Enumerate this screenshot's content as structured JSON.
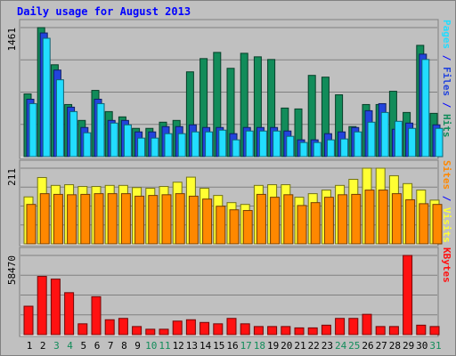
{
  "title": "Daily usage for August 2013",
  "colors": {
    "frame": "#c0c0c0",
    "title": "#0000ff",
    "hits": "#128c5a",
    "files": "#2244dd",
    "pages": "#22ddff",
    "visits": "#ffff33",
    "sites": "#ff8800",
    "kbytes": "#ff1111",
    "weekday_label": "#000000",
    "weekend_label": "#128c5a"
  },
  "chart_data": [
    {
      "type": "bar",
      "name": "hits-files-pages",
      "max_label": "1461",
      "ylim": [
        0,
        1461
      ],
      "grid": true,
      "side_label": [
        {
          "text": "Pages",
          "color": "#22ddff"
        },
        {
          "text": " / ",
          "color": "#0000ff"
        },
        {
          "text": "Files",
          "color": "#2244dd"
        },
        {
          "text": " / ",
          "color": "#0000ff"
        },
        {
          "text": "Hits",
          "color": "#128c5a"
        }
      ],
      "categories": [
        "1",
        "2",
        "3",
        "4",
        "5",
        "6",
        "7",
        "8",
        "9",
        "10",
        "11",
        "12",
        "13",
        "14",
        "15",
        "16",
        "17",
        "18",
        "19",
        "20",
        "21",
        "22",
        "23",
        "24",
        "25",
        "26",
        "27",
        "28",
        "29",
        "30",
        "31"
      ],
      "series": [
        {
          "name": "Hits",
          "values": [
            710,
            1461,
            1040,
            590,
            410,
            750,
            510,
            450,
            320,
            320,
            390,
            410,
            960,
            1110,
            1180,
            1000,
            1170,
            1130,
            1100,
            550,
            540,
            920,
            900,
            700,
            340,
            590,
            590,
            740,
            500,
            1260,
            490
          ]
        },
        {
          "name": "Files",
          "values": [
            650,
            1400,
            980,
            560,
            330,
            650,
            410,
            410,
            280,
            280,
            340,
            340,
            360,
            330,
            330,
            260,
            330,
            330,
            330,
            290,
            190,
            190,
            260,
            280,
            330,
            520,
            600,
            310,
            380,
            1160,
            360
          ]
        },
        {
          "name": "Pages",
          "values": [
            600,
            1340,
            870,
            510,
            270,
            600,
            380,
            360,
            210,
            210,
            260,
            260,
            280,
            280,
            300,
            190,
            290,
            290,
            290,
            230,
            160,
            160,
            190,
            200,
            280,
            390,
            500,
            400,
            320,
            1100,
            320
          ]
        }
      ]
    },
    {
      "type": "bar",
      "name": "visits-sites",
      "max_label": "211",
      "ylim": [
        0,
        211
      ],
      "grid": true,
      "side_label": [
        {
          "text": "Sites",
          "color": "#ff8800"
        },
        {
          "text": " / ",
          "color": "#0000ff"
        },
        {
          "text": "Visits",
          "color": "#ffff33"
        }
      ],
      "categories": [
        "1",
        "2",
        "3",
        "4",
        "5",
        "6",
        "7",
        "8",
        "9",
        "10",
        "11",
        "12",
        "13",
        "14",
        "15",
        "16",
        "17",
        "18",
        "19",
        "20",
        "21",
        "22",
        "23",
        "24",
        "25",
        "26",
        "27",
        "28",
        "29",
        "30",
        "31"
      ],
      "series": [
        {
          "name": "Visits",
          "values": [
            131,
            185,
            163,
            165,
            160,
            160,
            163,
            163,
            157,
            155,
            160,
            172,
            186,
            155,
            135,
            115,
            110,
            163,
            165,
            165,
            130,
            140,
            150,
            163,
            180,
            211,
            211,
            190,
            168,
            150,
            122
          ]
        },
        {
          "name": "Sites",
          "values": [
            110,
            140,
            138,
            137,
            138,
            140,
            140,
            140,
            133,
            135,
            137,
            140,
            133,
            125,
            105,
            95,
            93,
            138,
            130,
            137,
            107,
            115,
            130,
            137,
            138,
            150,
            150,
            140,
            123,
            112,
            110
          ]
        }
      ]
    },
    {
      "type": "bar",
      "name": "kbytes",
      "max_label": "58470",
      "ylim": [
        0,
        58470
      ],
      "grid": true,
      "side_label": [
        {
          "text": "KBytes",
          "color": "#ff1111"
        }
      ],
      "categories": [
        "1",
        "2",
        "3",
        "4",
        "5",
        "6",
        "7",
        "8",
        "9",
        "10",
        "11",
        "12",
        "13",
        "14",
        "15",
        "16",
        "17",
        "18",
        "19",
        "20",
        "21",
        "22",
        "23",
        "24",
        "25",
        "26",
        "27",
        "28",
        "29",
        "30",
        "31"
      ],
      "series": [
        {
          "name": "KBytes",
          "values": [
            21000,
            43000,
            41000,
            31000,
            8000,
            28000,
            11000,
            12000,
            6000,
            4000,
            4000,
            10000,
            11000,
            9000,
            8000,
            12000,
            8000,
            6000,
            6000,
            6000,
            5000,
            5000,
            7000,
            12000,
            12000,
            15000,
            6000,
            6000,
            58470,
            7000,
            6000
          ]
        }
      ]
    }
  ],
  "day_labels": {
    "categories": [
      "1",
      "2",
      "3",
      "4",
      "5",
      "6",
      "7",
      "8",
      "9",
      "10",
      "11",
      "12",
      "13",
      "14",
      "15",
      "16",
      "17",
      "18",
      "19",
      "20",
      "21",
      "22",
      "23",
      "24",
      "25",
      "26",
      "27",
      "28",
      "29",
      "30",
      "31"
    ],
    "weekend": [
      3,
      4,
      10,
      11,
      17,
      18,
      24,
      25,
      31
    ]
  }
}
